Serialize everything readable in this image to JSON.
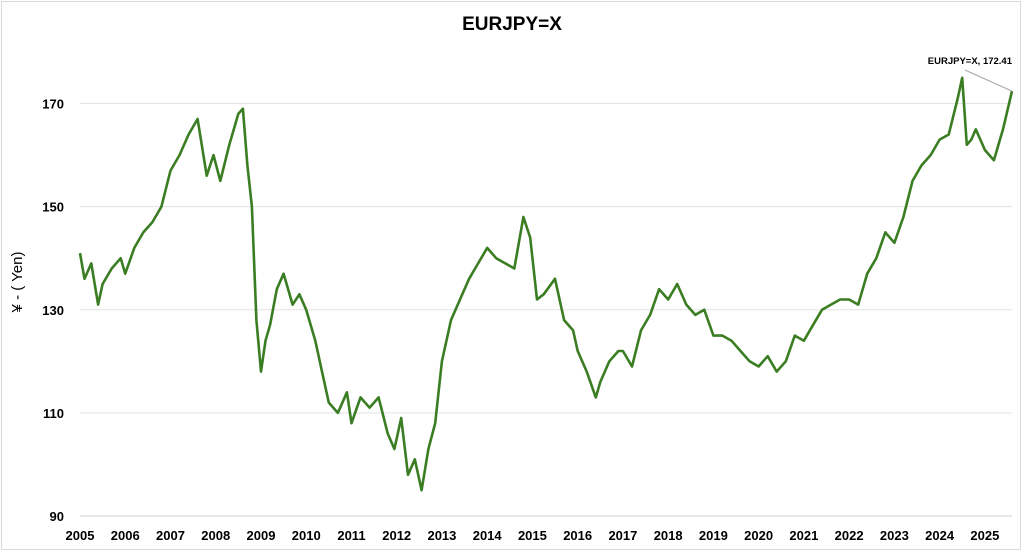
{
  "chart_data": {
    "type": "line",
    "title": "EURJPY=X",
    "xlabel": "",
    "ylabel": "¥ - ( Yen)",
    "ylim": [
      90,
      180
    ],
    "yticks": [
      90,
      110,
      130,
      150,
      170
    ],
    "xticks": [
      "2005",
      "2006",
      "2007",
      "2008",
      "2009",
      "2010",
      "2011",
      "2012",
      "2013",
      "2014",
      "2015",
      "2016",
      "2017",
      "2018",
      "2019",
      "2020",
      "2021",
      "2022",
      "2023",
      "2024",
      "2025"
    ],
    "grid": true,
    "legend": "none",
    "annotation": "EURJPY=X, 172.41",
    "colors": {
      "line": "#3a7d22",
      "grid": "#e3e3e3",
      "callout_line": "#a6a6a6"
    },
    "series": [
      {
        "x": [
          2005.0,
          2005.1,
          2005.25,
          2005.4,
          2005.5,
          2005.7,
          2005.9,
          2006.0,
          2006.2,
          2006.4,
          2006.6,
          2006.8,
          2007.0,
          2007.2,
          2007.4,
          2007.6,
          2007.8,
          2007.95,
          2008.1,
          2008.3,
          2008.5,
          2008.6,
          2008.7,
          2008.8,
          2008.9,
          2009.0,
          2009.1,
          2009.2,
          2009.35,
          2009.5,
          2009.7,
          2009.85,
          2010.0,
          2010.2,
          2010.35,
          2010.5,
          2010.7,
          2010.9,
          2011.0,
          2011.2,
          2011.4,
          2011.6,
          2011.8,
          2011.95,
          2012.1,
          2012.25,
          2012.4,
          2012.55,
          2012.7,
          2012.85,
          2013.0,
          2013.2,
          2013.4,
          2013.6,
          2013.8,
          2014.0,
          2014.2,
          2014.4,
          2014.6,
          2014.8,
          2014.95,
          2015.1,
          2015.25,
          2015.5,
          2015.7,
          2015.9,
          2016.0,
          2016.2,
          2016.4,
          2016.5,
          2016.7,
          2016.9,
          2017.0,
          2017.2,
          2017.4,
          2017.6,
          2017.8,
          2018.0,
          2018.2,
          2018.4,
          2018.6,
          2018.8,
          2019.0,
          2019.2,
          2019.4,
          2019.6,
          2019.8,
          2020.0,
          2020.2,
          2020.4,
          2020.6,
          2020.8,
          2021.0,
          2021.2,
          2021.4,
          2021.6,
          2021.8,
          2022.0,
          2022.2,
          2022.4,
          2022.6,
          2022.8,
          2023.0,
          2023.2,
          2023.4,
          2023.6,
          2023.8,
          2024.0,
          2024.2,
          2024.4,
          2024.5,
          2024.6,
          2024.7,
          2024.8,
          2025.0,
          2025.2,
          2025.4,
          2025.6
        ],
        "y": [
          141,
          136,
          139,
          131,
          135,
          138,
          140,
          137,
          142,
          145,
          147,
          150,
          157,
          160,
          164,
          167,
          156,
          160,
          155,
          162,
          168,
          169,
          158,
          150,
          128,
          118,
          124,
          127,
          134,
          137,
          131,
          133,
          130,
          124,
          118,
          112,
          110,
          114,
          108,
          113,
          111,
          113,
          106,
          103,
          109,
          98,
          101,
          95,
          103,
          108,
          120,
          128,
          132,
          136,
          139,
          142,
          140,
          139,
          138,
          148,
          144,
          132,
          133,
          136,
          128,
          126,
          122,
          118,
          113,
          116,
          120,
          122,
          122,
          119,
          126,
          129,
          134,
          132,
          135,
          131,
          129,
          130,
          125,
          125,
          124,
          122,
          120,
          119,
          121,
          118,
          120,
          125,
          124,
          127,
          130,
          131,
          132,
          132,
          131,
          137,
          140,
          145,
          143,
          148,
          155,
          158,
          160,
          163,
          164,
          171,
          175,
          162,
          163,
          165,
          161,
          159,
          165,
          172.41
        ]
      }
    ]
  }
}
